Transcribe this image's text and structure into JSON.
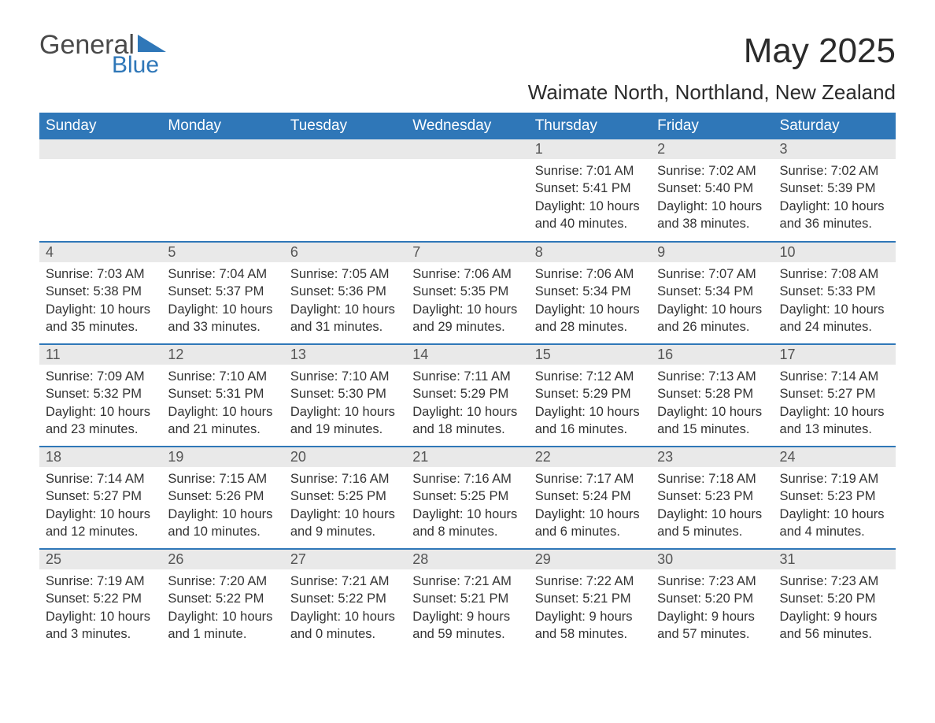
{
  "brand": {
    "word1": "General",
    "word2": "Blue"
  },
  "title": "May 2025",
  "location": "Waimate North, Northland, New Zealand",
  "colors": {
    "accent": "#2f77b8",
    "header_text": "#ffffff",
    "daynum_bg": "#e9e9e9",
    "body_text": "#333333",
    "background": "#ffffff"
  },
  "day_headers": [
    "Sunday",
    "Monday",
    "Tuesday",
    "Wednesday",
    "Thursday",
    "Friday",
    "Saturday"
  ],
  "weeks": [
    [
      {
        "n": "",
        "sunrise": "",
        "sunset": "",
        "daylight": ""
      },
      {
        "n": "",
        "sunrise": "",
        "sunset": "",
        "daylight": ""
      },
      {
        "n": "",
        "sunrise": "",
        "sunset": "",
        "daylight": ""
      },
      {
        "n": "",
        "sunrise": "",
        "sunset": "",
        "daylight": ""
      },
      {
        "n": "1",
        "sunrise": "Sunrise: 7:01 AM",
        "sunset": "Sunset: 5:41 PM",
        "daylight": "Daylight: 10 hours and 40 minutes."
      },
      {
        "n": "2",
        "sunrise": "Sunrise: 7:02 AM",
        "sunset": "Sunset: 5:40 PM",
        "daylight": "Daylight: 10 hours and 38 minutes."
      },
      {
        "n": "3",
        "sunrise": "Sunrise: 7:02 AM",
        "sunset": "Sunset: 5:39 PM",
        "daylight": "Daylight: 10 hours and 36 minutes."
      }
    ],
    [
      {
        "n": "4",
        "sunrise": "Sunrise: 7:03 AM",
        "sunset": "Sunset: 5:38 PM",
        "daylight": "Daylight: 10 hours and 35 minutes."
      },
      {
        "n": "5",
        "sunrise": "Sunrise: 7:04 AM",
        "sunset": "Sunset: 5:37 PM",
        "daylight": "Daylight: 10 hours and 33 minutes."
      },
      {
        "n": "6",
        "sunrise": "Sunrise: 7:05 AM",
        "sunset": "Sunset: 5:36 PM",
        "daylight": "Daylight: 10 hours and 31 minutes."
      },
      {
        "n": "7",
        "sunrise": "Sunrise: 7:06 AM",
        "sunset": "Sunset: 5:35 PM",
        "daylight": "Daylight: 10 hours and 29 minutes."
      },
      {
        "n": "8",
        "sunrise": "Sunrise: 7:06 AM",
        "sunset": "Sunset: 5:34 PM",
        "daylight": "Daylight: 10 hours and 28 minutes."
      },
      {
        "n": "9",
        "sunrise": "Sunrise: 7:07 AM",
        "sunset": "Sunset: 5:34 PM",
        "daylight": "Daylight: 10 hours and 26 minutes."
      },
      {
        "n": "10",
        "sunrise": "Sunrise: 7:08 AM",
        "sunset": "Sunset: 5:33 PM",
        "daylight": "Daylight: 10 hours and 24 minutes."
      }
    ],
    [
      {
        "n": "11",
        "sunrise": "Sunrise: 7:09 AM",
        "sunset": "Sunset: 5:32 PM",
        "daylight": "Daylight: 10 hours and 23 minutes."
      },
      {
        "n": "12",
        "sunrise": "Sunrise: 7:10 AM",
        "sunset": "Sunset: 5:31 PM",
        "daylight": "Daylight: 10 hours and 21 minutes."
      },
      {
        "n": "13",
        "sunrise": "Sunrise: 7:10 AM",
        "sunset": "Sunset: 5:30 PM",
        "daylight": "Daylight: 10 hours and 19 minutes."
      },
      {
        "n": "14",
        "sunrise": "Sunrise: 7:11 AM",
        "sunset": "Sunset: 5:29 PM",
        "daylight": "Daylight: 10 hours and 18 minutes."
      },
      {
        "n": "15",
        "sunrise": "Sunrise: 7:12 AM",
        "sunset": "Sunset: 5:29 PM",
        "daylight": "Daylight: 10 hours and 16 minutes."
      },
      {
        "n": "16",
        "sunrise": "Sunrise: 7:13 AM",
        "sunset": "Sunset: 5:28 PM",
        "daylight": "Daylight: 10 hours and 15 minutes."
      },
      {
        "n": "17",
        "sunrise": "Sunrise: 7:14 AM",
        "sunset": "Sunset: 5:27 PM",
        "daylight": "Daylight: 10 hours and 13 minutes."
      }
    ],
    [
      {
        "n": "18",
        "sunrise": "Sunrise: 7:14 AM",
        "sunset": "Sunset: 5:27 PM",
        "daylight": "Daylight: 10 hours and 12 minutes."
      },
      {
        "n": "19",
        "sunrise": "Sunrise: 7:15 AM",
        "sunset": "Sunset: 5:26 PM",
        "daylight": "Daylight: 10 hours and 10 minutes."
      },
      {
        "n": "20",
        "sunrise": "Sunrise: 7:16 AM",
        "sunset": "Sunset: 5:25 PM",
        "daylight": "Daylight: 10 hours and 9 minutes."
      },
      {
        "n": "21",
        "sunrise": "Sunrise: 7:16 AM",
        "sunset": "Sunset: 5:25 PM",
        "daylight": "Daylight: 10 hours and 8 minutes."
      },
      {
        "n": "22",
        "sunrise": "Sunrise: 7:17 AM",
        "sunset": "Sunset: 5:24 PM",
        "daylight": "Daylight: 10 hours and 6 minutes."
      },
      {
        "n": "23",
        "sunrise": "Sunrise: 7:18 AM",
        "sunset": "Sunset: 5:23 PM",
        "daylight": "Daylight: 10 hours and 5 minutes."
      },
      {
        "n": "24",
        "sunrise": "Sunrise: 7:19 AM",
        "sunset": "Sunset: 5:23 PM",
        "daylight": "Daylight: 10 hours and 4 minutes."
      }
    ],
    [
      {
        "n": "25",
        "sunrise": "Sunrise: 7:19 AM",
        "sunset": "Sunset: 5:22 PM",
        "daylight": "Daylight: 10 hours and 3 minutes."
      },
      {
        "n": "26",
        "sunrise": "Sunrise: 7:20 AM",
        "sunset": "Sunset: 5:22 PM",
        "daylight": "Daylight: 10 hours and 1 minute."
      },
      {
        "n": "27",
        "sunrise": "Sunrise: 7:21 AM",
        "sunset": "Sunset: 5:22 PM",
        "daylight": "Daylight: 10 hours and 0 minutes."
      },
      {
        "n": "28",
        "sunrise": "Sunrise: 7:21 AM",
        "sunset": "Sunset: 5:21 PM",
        "daylight": "Daylight: 9 hours and 59 minutes."
      },
      {
        "n": "29",
        "sunrise": "Sunrise: 7:22 AM",
        "sunset": "Sunset: 5:21 PM",
        "daylight": "Daylight: 9 hours and 58 minutes."
      },
      {
        "n": "30",
        "sunrise": "Sunrise: 7:23 AM",
        "sunset": "Sunset: 5:20 PM",
        "daylight": "Daylight: 9 hours and 57 minutes."
      },
      {
        "n": "31",
        "sunrise": "Sunrise: 7:23 AM",
        "sunset": "Sunset: 5:20 PM",
        "daylight": "Daylight: 9 hours and 56 minutes."
      }
    ]
  ]
}
